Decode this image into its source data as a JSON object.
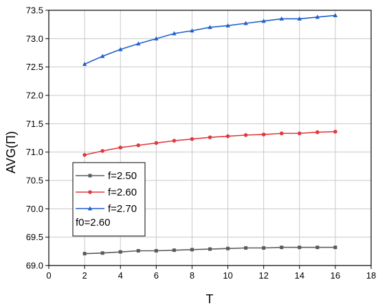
{
  "chart_data": {
    "type": "line",
    "title": "",
    "xlabel": "T",
    "ylabel": "AVG(Π)",
    "xlim": [
      0,
      18
    ],
    "ylim": [
      69.0,
      73.5
    ],
    "xticks": [
      0,
      2,
      4,
      6,
      8,
      10,
      12,
      14,
      16,
      18
    ],
    "yticks": [
      69.0,
      69.5,
      70.0,
      70.5,
      71.0,
      71.5,
      72.0,
      72.5,
      73.0,
      73.5
    ],
    "xtick_labels": [
      "0",
      "2",
      "4",
      "6",
      "8",
      "10",
      "12",
      "14",
      "16",
      "18"
    ],
    "ytick_labels": [
      "69.0",
      "69.5",
      "70.0",
      "70.5",
      "71.0",
      "71.5",
      "72.0",
      "72.5",
      "73.0",
      "73.5"
    ],
    "grid": true,
    "legend_position": "lower-left",
    "legend_note": "f0=2.60",
    "x": [
      2,
      3,
      4,
      5,
      6,
      7,
      8,
      9,
      10,
      11,
      12,
      13,
      14,
      15,
      16
    ],
    "series": [
      {
        "name": "f=2.50",
        "color": "#5a5a5a",
        "marker": "square",
        "values": [
          69.21,
          69.22,
          69.24,
          69.26,
          69.26,
          69.27,
          69.28,
          69.29,
          69.3,
          69.31,
          69.31,
          69.32,
          69.32,
          69.32,
          69.32
        ]
      },
      {
        "name": "f=2.60",
        "color": "#e0393e",
        "marker": "circle",
        "values": [
          70.95,
          71.02,
          71.08,
          71.12,
          71.16,
          71.2,
          71.23,
          71.26,
          71.28,
          71.3,
          71.31,
          71.33,
          71.33,
          71.35,
          71.36
        ]
      },
      {
        "name": "f=2.70",
        "color": "#1f5fc9",
        "marker": "triangle",
        "values": [
          72.55,
          72.69,
          72.81,
          72.91,
          73.0,
          73.09,
          73.14,
          73.2,
          73.23,
          73.27,
          73.31,
          73.35,
          73.35,
          73.38,
          73.41
        ]
      }
    ]
  }
}
